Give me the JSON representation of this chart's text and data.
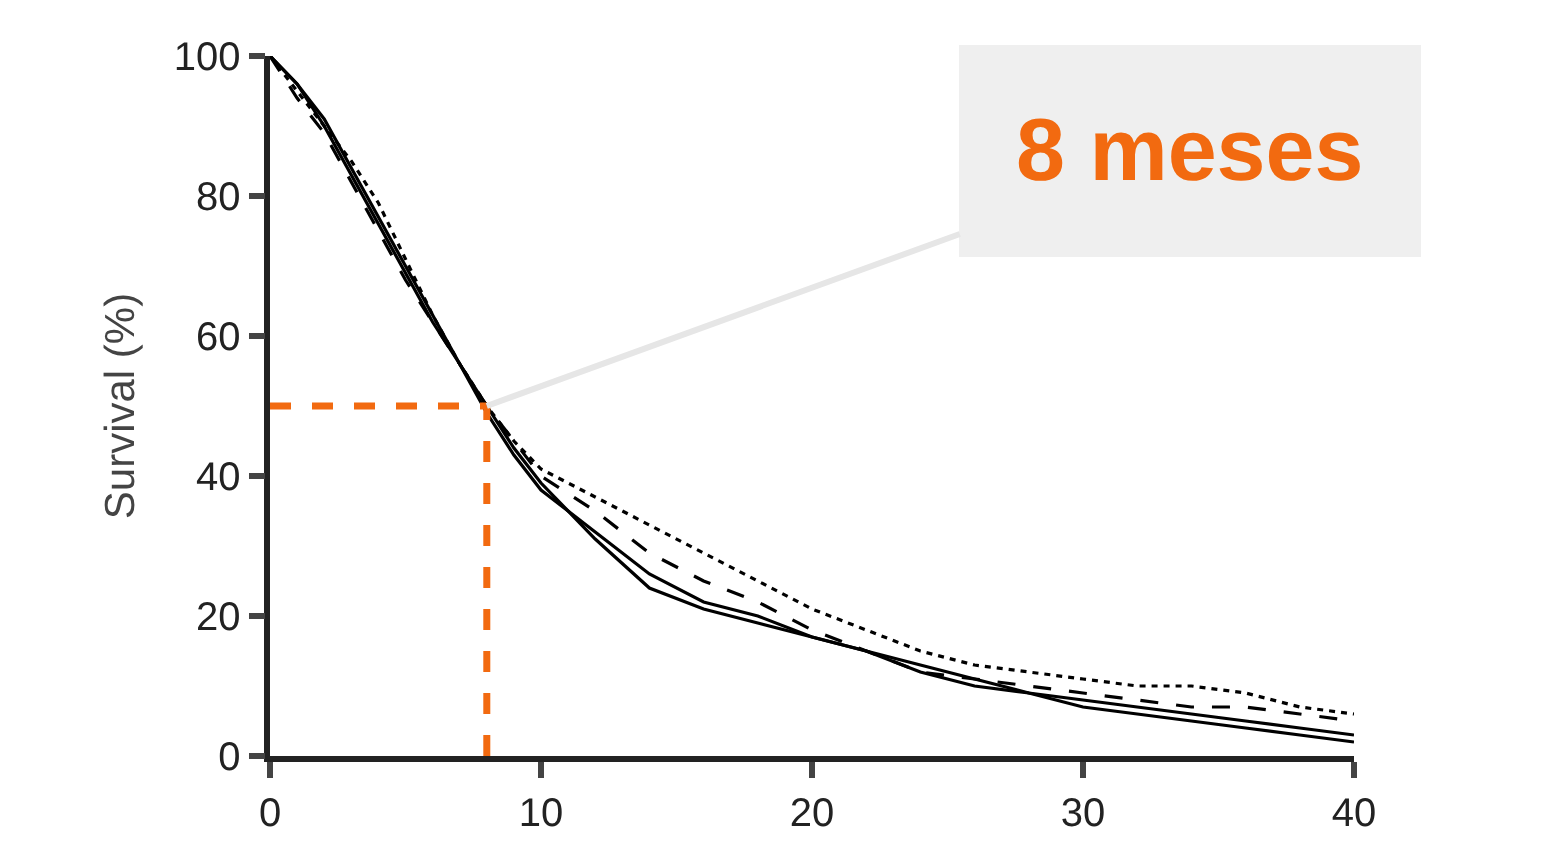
{
  "chart_data": {
    "type": "line",
    "ylabel": "Survival (%)",
    "x": [
      0,
      1,
      2,
      3,
      4,
      5,
      6,
      7,
      8,
      9,
      10,
      12,
      14,
      16,
      18,
      20,
      22,
      24,
      26,
      28,
      30,
      32,
      34,
      36,
      38,
      40
    ],
    "series": [
      {
        "color": "#000000",
        "line_style": "solid",
        "values": [
          100,
          96,
          90,
          83,
          76,
          69,
          62,
          56,
          50,
          44,
          39,
          31,
          24,
          21,
          19,
          17,
          15,
          12,
          10,
          9,
          7,
          6,
          5,
          4,
          3,
          2
        ]
      },
      {
        "color": "#000000",
        "line_style": "dotted",
        "values": [
          100,
          95,
          90,
          85,
          79,
          71,
          63,
          56,
          50,
          45,
          41,
          37,
          33,
          29,
          25,
          21,
          18,
          15,
          13,
          12,
          11,
          10,
          10,
          9,
          7,
          6
        ]
      },
      {
        "color": "#000000",
        "line_style": "dashed",
        "values": [
          100,
          94,
          89,
          82,
          75,
          68,
          62,
          56,
          50,
          45,
          40,
          35,
          29,
          25,
          22,
          18,
          15,
          12,
          11,
          10,
          9,
          8,
          7,
          7,
          6,
          5
        ]
      },
      {
        "color": "#000000",
        "line_style": "solid",
        "values": [
          100,
          96,
          91,
          84,
          77,
          70,
          63,
          56,
          49,
          43,
          38,
          32,
          26,
          22,
          20,
          17,
          15,
          13,
          11,
          9,
          8,
          7,
          6,
          5,
          4,
          3
        ]
      }
    ],
    "xlim": [
      0,
      40
    ],
    "xticks": [
      0,
      10,
      20,
      30,
      40
    ],
    "ylim": [
      0,
      100
    ],
    "yticks": [
      0,
      20,
      40,
      60,
      80,
      100
    ],
    "grid": false,
    "marker": "none",
    "ref_lines": [
      {
        "axis": "y",
        "value": 50,
        "color": "#f26a10",
        "line_style": "dashed"
      },
      {
        "axis": "x",
        "value": 8,
        "color": "#f26a10",
        "line_style": "dashed"
      }
    ],
    "annotations": [
      {
        "text": "8 meses",
        "x": 8,
        "y": 50
      }
    ]
  }
}
